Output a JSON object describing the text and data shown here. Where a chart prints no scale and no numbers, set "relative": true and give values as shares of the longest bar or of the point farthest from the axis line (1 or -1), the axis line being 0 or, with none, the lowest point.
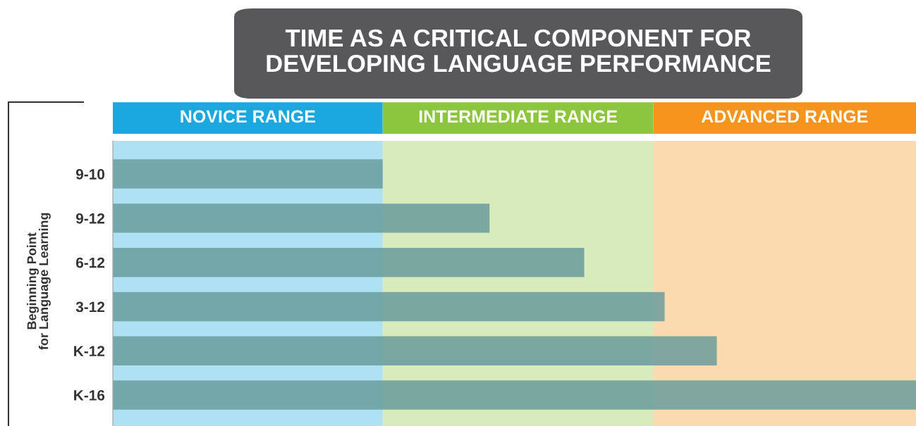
{
  "chart_data": {
    "type": "bar",
    "orientation": "horizontal",
    "relative": true,
    "title": "TIME AS A CRITICAL COMPONENT FOR\nDEVELOPING LANGUAGE PERFORMANCE",
    "ylabel": "Beginning Point\nfor Language Learning",
    "categories": [
      "9-10",
      "9-12",
      "6-12",
      "3-12",
      "K-12",
      "K-16"
    ],
    "values": [
      0.336,
      0.469,
      0.587,
      0.687,
      0.752,
      1
    ],
    "color": "#6a9c9c",
    "bands": [
      {
        "axis": "x",
        "from": 0,
        "to": 0.336,
        "label": "NOVICE RANGE",
        "color": "#1ba8e0"
      },
      {
        "axis": "x",
        "from": 0.336,
        "to": 0.673,
        "label": "INTERMEDIATE RANGE",
        "color": "#8cc63f"
      },
      {
        "axis": "x",
        "from": 0.673,
        "to": 1,
        "label": "ADVANCED RANGE",
        "color": "#f7941d"
      }
    ],
    "grid": false,
    "legend": false
  }
}
